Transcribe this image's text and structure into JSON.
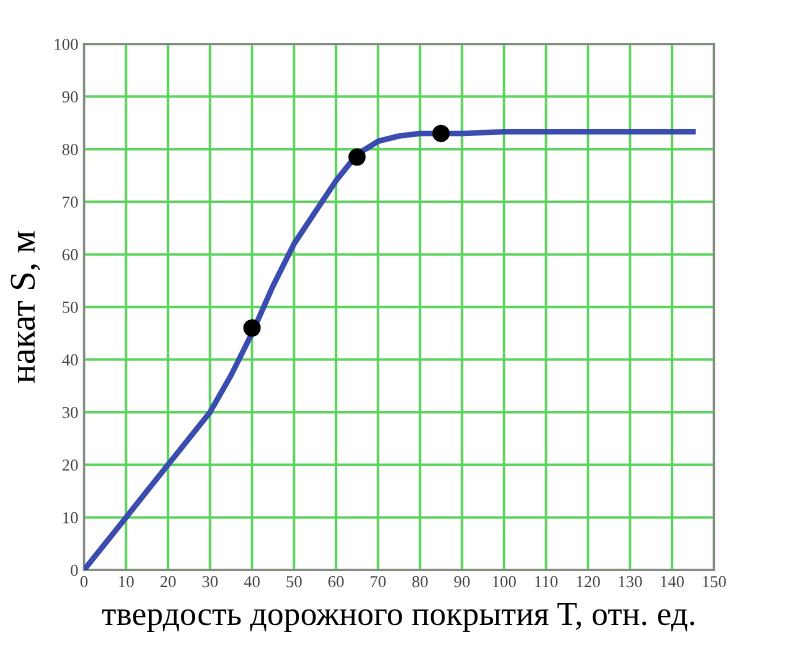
{
  "chart_data": {
    "type": "line",
    "xlabel": "твердость дорожного покрытия T, отн. ед.",
    "ylabel": "накат S, м",
    "xlim": [
      0,
      150
    ],
    "ylim": [
      0,
      100
    ],
    "xticks": [
      0,
      10,
      20,
      30,
      40,
      50,
      60,
      70,
      80,
      90,
      100,
      110,
      120,
      130,
      140,
      150
    ],
    "yticks": [
      0,
      10,
      20,
      30,
      40,
      50,
      60,
      70,
      80,
      90,
      100
    ],
    "grid": true,
    "legend": false,
    "series": [
      {
        "color": "#3a4cb0",
        "marker": "none",
        "line_style": "solid",
        "x": [
          0,
          5,
          10,
          15,
          20,
          25,
          30,
          35,
          40,
          45,
          50,
          55,
          60,
          65,
          68,
          70,
          75,
          80,
          90,
          100,
          120,
          145
        ],
        "values": [
          0,
          5,
          10,
          15,
          20,
          25,
          30,
          37,
          45,
          54,
          62,
          68,
          74,
          79,
          80.5,
          81.5,
          82.5,
          83,
          83,
          83.3,
          83.3,
          83.3
        ]
      },
      {
        "type": "scatter",
        "color": "#000000",
        "marker": "circle",
        "x": [
          40,
          65,
          85
        ],
        "values": [
          46,
          78.5,
          83
        ]
      }
    ]
  }
}
